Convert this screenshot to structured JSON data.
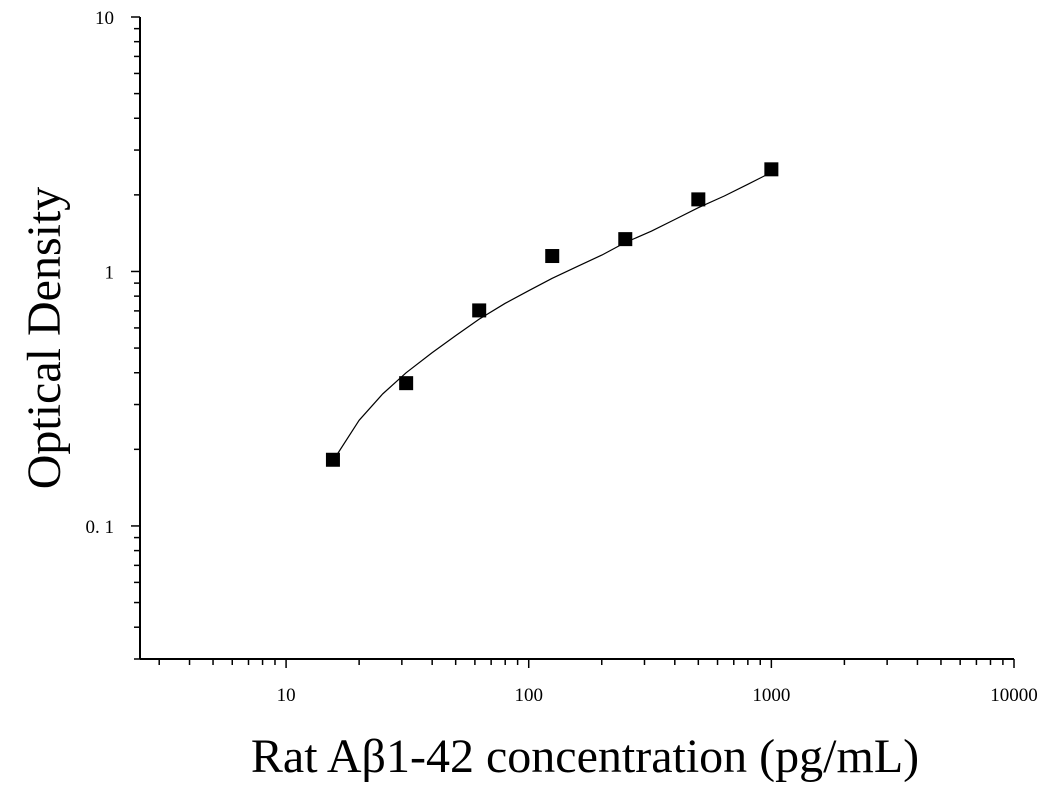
{
  "chart_data": {
    "type": "scatter",
    "title": "",
    "xlabel": "Rat Aβ1-42 concentration (pg/mL)",
    "ylabel": "Optical Density",
    "x_scale": "log",
    "y_scale": "log",
    "xlim": [
      2.5,
      10000
    ],
    "ylim": [
      0.03,
      10
    ],
    "x_ticks": [
      10,
      100,
      1000,
      10000
    ],
    "x_tick_labels": [
      "10",
      "100",
      "1000",
      "10000"
    ],
    "y_ticks": [
      0.1,
      1,
      10
    ],
    "y_tick_labels": [
      "0. 1",
      "1",
      "10"
    ],
    "grid": false,
    "legend": "none",
    "marker": "square",
    "colors": {
      "marker": "#000000",
      "curve": "#000000",
      "axis": "#000000"
    },
    "series": [
      {
        "x": [
          15.6,
          31.25,
          62.5,
          125,
          250,
          500,
          1000
        ],
        "y": [
          0.182,
          0.364,
          0.703,
          1.15,
          1.34,
          1.92,
          2.52
        ]
      }
    ],
    "fit_curve": {
      "x": [
        15.6,
        20,
        25,
        31.25,
        40,
        50,
        62.5,
        80,
        100,
        125,
        160,
        200,
        250,
        320,
        400,
        500,
        640,
        800,
        1000
      ],
      "y": [
        0.18,
        0.26,
        0.33,
        0.4,
        0.48,
        0.56,
        0.65,
        0.75,
        0.84,
        0.94,
        1.05,
        1.16,
        1.3,
        1.44,
        1.6,
        1.78,
        1.98,
        2.2,
        2.45
      ]
    }
  }
}
